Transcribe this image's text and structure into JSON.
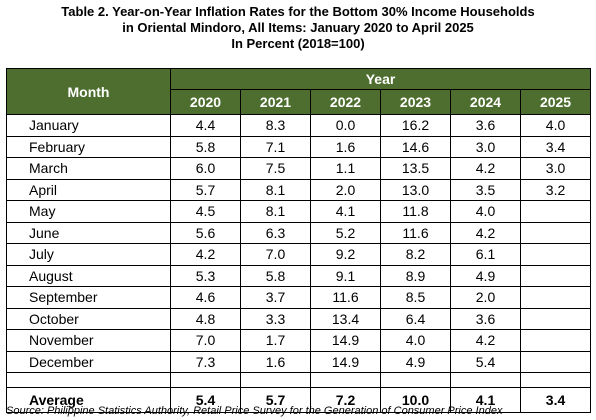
{
  "title": {
    "line1": "Table 2. Year-on-Year Inflation Rates for the Bottom 30% Income Households",
    "line2": "in Oriental Mindoro, All Items: January 2020 to April 2025",
    "line3": "In Percent (2018=100)"
  },
  "header": {
    "month_label": "Month",
    "year_label": "Year",
    "years": [
      "2020",
      "2021",
      "2022",
      "2023",
      "2024",
      "2025"
    ]
  },
  "rows": [
    {
      "month": "January",
      "values": [
        "4.4",
        "8.3",
        "0.0",
        "16.2",
        "3.6",
        "4.0"
      ]
    },
    {
      "month": "February",
      "values": [
        "5.8",
        "7.1",
        "1.6",
        "14.6",
        "3.0",
        "3.4"
      ]
    },
    {
      "month": "March",
      "values": [
        "6.0",
        "7.5",
        "1.1",
        "13.5",
        "4.2",
        "3.0"
      ]
    },
    {
      "month": "April",
      "values": [
        "5.7",
        "8.1",
        "2.0",
        "13.0",
        "3.5",
        "3.2"
      ]
    },
    {
      "month": "May",
      "values": [
        "4.5",
        "8.1",
        "4.1",
        "11.8",
        "4.0",
        ""
      ]
    },
    {
      "month": "June",
      "values": [
        "5.6",
        "6.3",
        "5.2",
        "11.6",
        "4.2",
        ""
      ]
    },
    {
      "month": "July",
      "values": [
        "4.2",
        "7.0",
        "9.2",
        "8.2",
        "6.1",
        ""
      ]
    },
    {
      "month": "August",
      "values": [
        "5.3",
        "5.8",
        "9.1",
        "8.9",
        "4.9",
        ""
      ]
    },
    {
      "month": "September",
      "values": [
        "4.6",
        "3.7",
        "11.6",
        "8.5",
        "2.0",
        ""
      ]
    },
    {
      "month": "October",
      "values": [
        "4.8",
        "3.3",
        "13.4",
        "6.4",
        "3.6",
        ""
      ]
    },
    {
      "month": "November",
      "values": [
        "7.0",
        "1.7",
        "14.9",
        "4.0",
        "4.2",
        ""
      ]
    },
    {
      "month": "December",
      "values": [
        "7.3",
        "1.6",
        "14.9",
        "4.9",
        "5.4",
        ""
      ]
    }
  ],
  "average": {
    "label": "Average",
    "values": [
      "5.4",
      "5.7",
      "7.2",
      "10.0",
      "4.1",
      "3.4"
    ]
  },
  "source": "Source: Philippine Statistics Authority, Retail Price Survey for the Generation of Consumer Price Index",
  "colors": {
    "header_bg": "#4e6e2f",
    "header_text": "#ffffff"
  }
}
